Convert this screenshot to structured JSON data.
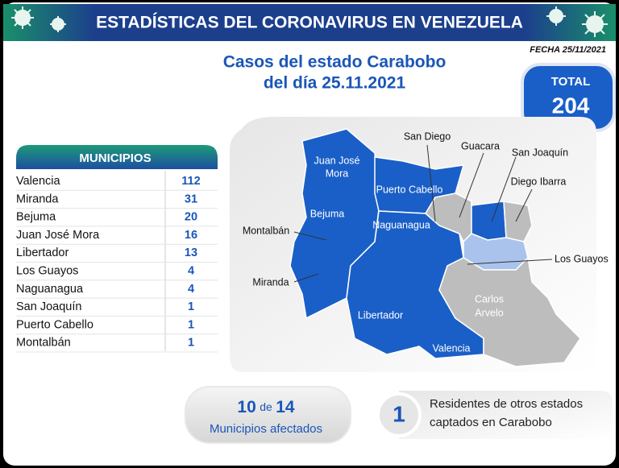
{
  "header": {
    "title": "ESTADÍSTICAS DEL CORONAVIRUS EN VENEZUELA",
    "date": "FECHA 25/11/2021"
  },
  "subtitle": {
    "line1": "Casos del estado Carabobo",
    "line2": "del día 25.11.2021"
  },
  "total": {
    "label": "TOTAL",
    "value": 204
  },
  "table": {
    "header": "MUNICIPIOS",
    "rows": [
      [
        "Valencia",
        112
      ],
      [
        "Miranda",
        31
      ],
      [
        "Bejuma",
        20
      ],
      [
        "Juan José Mora",
        16
      ],
      [
        "Libertador",
        13
      ],
      [
        "Los Guayos",
        4
      ],
      [
        "Naguanagua",
        4
      ],
      [
        "San Joaquín",
        1
      ],
      [
        "Puerto Cabello",
        1
      ],
      [
        "Montalbán",
        1
      ]
    ]
  },
  "map": {
    "juan_jose_mora": [
      "Juan José",
      "Mora"
    ],
    "puerto_cabello": "Puerto Cabello",
    "bejuma": "Bejuma",
    "naguanagua": "Naguanagua",
    "montalban": "Montalbán",
    "miranda": "Miranda",
    "libertador": "Libertador",
    "valencia": "Valencia",
    "san_diego": "San Diego",
    "guacara": "Guacara",
    "san_joaquin": "San Joaquín",
    "diego_ibarra": "Diego Ibarra",
    "los_guayos": "Los Guayos",
    "carlos_arvelo": [
      "Carlos",
      "Arvelo"
    ]
  },
  "affected": {
    "count": 10,
    "connector": "de",
    "of": 14,
    "label": "Municipios afectados"
  },
  "residents": {
    "count": 1,
    "line1": "Residentes de otros estados",
    "line2": "captados en Carabobo"
  }
}
